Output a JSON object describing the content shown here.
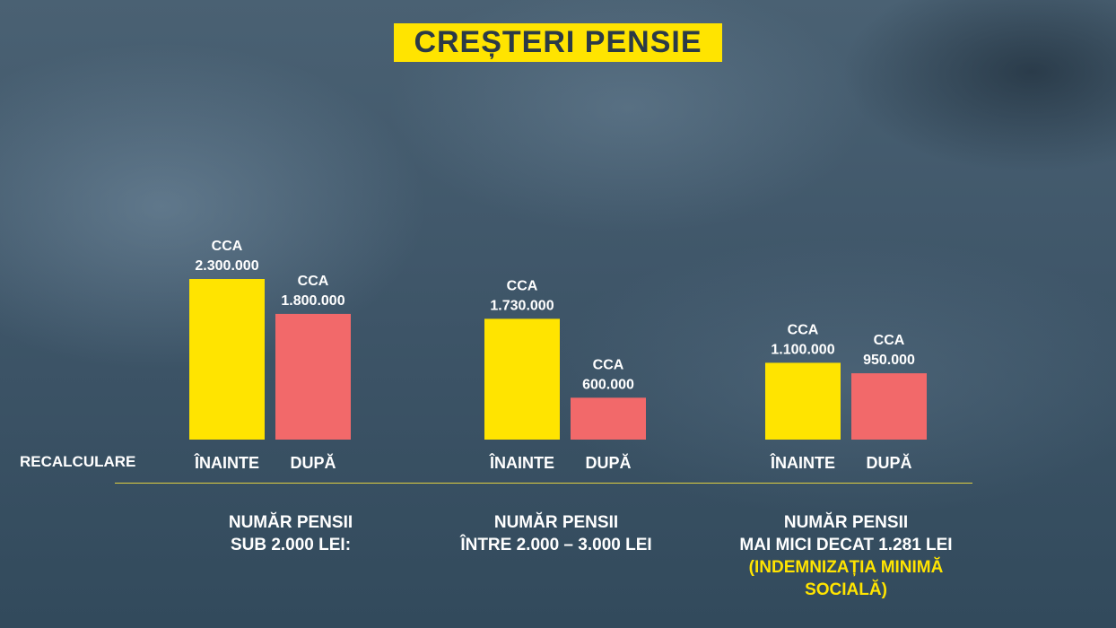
{
  "title": "CREȘTERI PENSIE",
  "row_label": "RECALCULARE",
  "colors": {
    "before": "#ffe400",
    "after": "#f2696a",
    "accent": "#ffe400"
  },
  "chart_data": {
    "type": "bar",
    "categories": [
      "ÎNAINTE",
      "DUPĂ"
    ],
    "groups": [
      {
        "caption_lines": [
          "NUMĂR PENSII",
          "SUB 2.000 LEI:"
        ],
        "note_lines": [],
        "bars": [
          {
            "category": "ÎNAINTE",
            "value": 2300000,
            "label_lines": [
              "CCA",
              "2.300.000"
            ]
          },
          {
            "category": "DUPĂ",
            "value": 1800000,
            "label_lines": [
              "CCA",
              "1.800.000"
            ]
          }
        ]
      },
      {
        "caption_lines": [
          "NUMĂR PENSII",
          "ÎNTRE 2.000 – 3.000 LEI"
        ],
        "note_lines": [],
        "bars": [
          {
            "category": "ÎNAINTE",
            "value": 1730000,
            "label_lines": [
              "CCA",
              "1.730.000"
            ]
          },
          {
            "category": "DUPĂ",
            "value": 600000,
            "label_lines": [
              "CCA",
              "600.000"
            ]
          }
        ]
      },
      {
        "caption_lines": [
          "NUMĂR PENSII",
          "MAI MICI DECAT 1.281 LEI"
        ],
        "note_lines": [
          "(INDEMNIZAȚIA MINIMĂ",
          "SOCIALĂ)"
        ],
        "bars": [
          {
            "category": "ÎNAINTE",
            "value": 1100000,
            "label_lines": [
              "CCA",
              "1.100.000"
            ]
          },
          {
            "category": "DUPĂ",
            "value": 950000,
            "label_lines": [
              "CCA",
              "950.000"
            ]
          }
        ]
      }
    ]
  }
}
